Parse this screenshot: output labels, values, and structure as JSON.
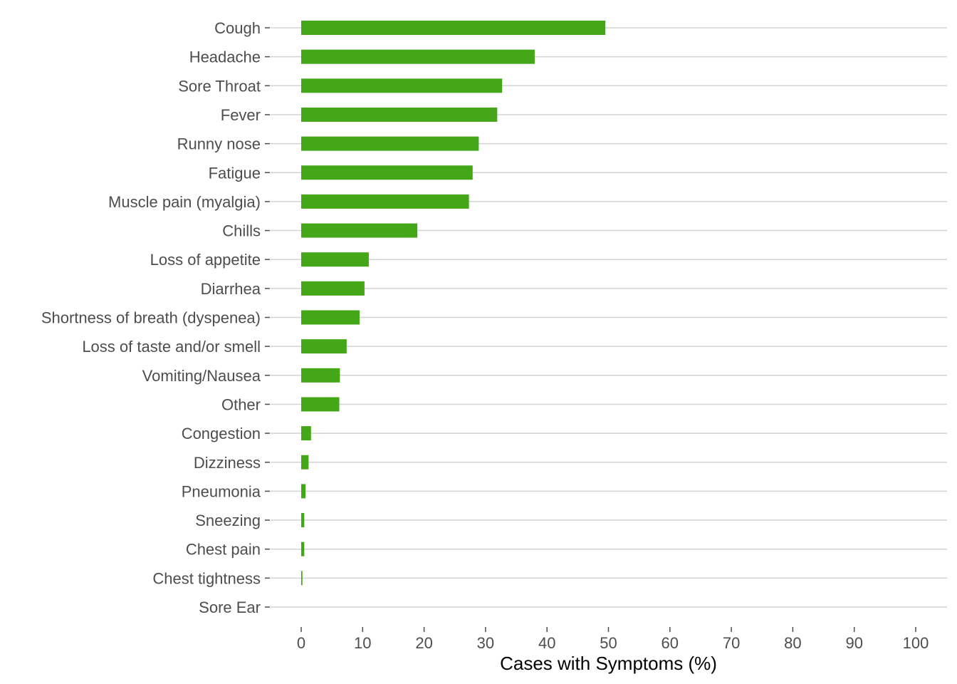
{
  "colors": {
    "bar": "#44a718",
    "grid": "#d3d3d3",
    "tick": "#4d4d4d",
    "text": "#4d4d4d",
    "title": "#000000"
  },
  "chart_data": {
    "type": "bar",
    "orientation": "horizontal",
    "xlabel": "Cases with Symptoms (%)",
    "xlim": [
      0,
      100
    ],
    "x_ticks": [
      0,
      10,
      20,
      30,
      40,
      50,
      60,
      70,
      80,
      90,
      100
    ],
    "grid": "horizontal-major",
    "legend": "none",
    "categories": [
      "Cough",
      "Headache",
      "Sore Throat",
      "Fever",
      "Runny nose",
      "Fatigue",
      "Muscle pain (myalgia)",
      "Chills",
      "Loss of appetite",
      "Diarrhea",
      "Shortness of breath (dyspenea)",
      "Loss of taste and/or smell",
      "Vomiting/Nausea",
      "Other",
      "Congestion",
      "Dizziness",
      "Pneumonia",
      "Sneezing",
      "Chest pain",
      "Chest tightness",
      "Sore Ear"
    ],
    "values": [
      49.5,
      38.0,
      32.7,
      31.9,
      28.9,
      27.9,
      27.3,
      18.9,
      11.0,
      10.3,
      9.5,
      7.4,
      6.3,
      6.2,
      1.6,
      1.2,
      0.7,
      0.5,
      0.5,
      0.2,
      0.0
    ]
  }
}
